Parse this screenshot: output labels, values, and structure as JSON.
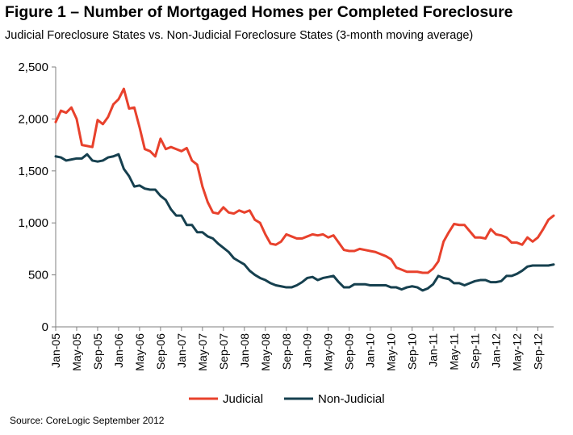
{
  "title": "Figure 1 – Number of Mortgaged Homes per Completed Foreclosure",
  "subtitle": "Judicial Foreclosure States vs. Non-Judicial Foreclosure States (3-month moving average)",
  "source": "Source: CoreLogic September 2012",
  "colors": {
    "judicial": "#e8412c",
    "non_judicial": "#16404f",
    "axis": "#7f7f7f"
  },
  "chart_data": {
    "type": "line",
    "title": "Figure 1 – Number of Mortgaged Homes per Completed Foreclosure",
    "subtitle": "Judicial Foreclosure States vs. Non-Judicial Foreclosure States (3-month moving average)",
    "xlabel": "",
    "ylabel": "",
    "ylim": [
      0,
      2500
    ],
    "yticks": [
      0,
      500,
      1000,
      1500,
      2000,
      2500
    ],
    "ytick_labels": [
      "0",
      "500",
      "1,000",
      "1,500",
      "2,000",
      "2,500"
    ],
    "xtick_labels": [
      "Jan-05",
      "May-05",
      "Sep-05",
      "Jan-06",
      "May-06",
      "Sep-06",
      "Jan-07",
      "May-07",
      "Sep-07",
      "Jan-08",
      "May-08",
      "Sep-08",
      "Jan-09",
      "May-09",
      "Sep-09",
      "Jan-10",
      "May-10",
      "Sep-10",
      "Jan-11",
      "May-11",
      "Sep-11",
      "Jan-12",
      "May-12",
      "Sep-12"
    ],
    "grid": false,
    "legend_position": "bottom",
    "x_range": [
      "Jan-05",
      "Sep-12"
    ],
    "series": [
      {
        "name": "Judicial",
        "values": [
          1970,
          2080,
          2060,
          2110,
          2000,
          1750,
          1740,
          1730,
          1990,
          1950,
          2020,
          2140,
          2190,
          2290,
          2100,
          2110,
          1920,
          1710,
          1690,
          1640,
          1810,
          1710,
          1730,
          1710,
          1690,
          1720,
          1600,
          1560,
          1350,
          1200,
          1100,
          1090,
          1150,
          1100,
          1090,
          1120,
          1100,
          1120,
          1030,
          1000,
          890,
          800,
          790,
          820,
          890,
          870,
          850,
          850,
          870,
          890,
          880,
          890,
          860,
          880,
          810,
          740,
          730,
          730,
          750,
          740,
          730,
          720,
          700,
          680,
          650,
          570,
          550,
          530,
          530,
          530,
          520,
          520,
          560,
          630,
          820,
          910,
          990,
          980,
          980,
          920,
          860,
          860,
          850,
          940,
          890,
          880,
          860,
          810,
          810,
          790,
          860,
          820,
          860,
          940,
          1030,
          1070
        ]
      },
      {
        "name": "Non-Judicial",
        "values": [
          1640,
          1630,
          1600,
          1610,
          1620,
          1620,
          1660,
          1600,
          1590,
          1600,
          1630,
          1640,
          1660,
          1520,
          1450,
          1350,
          1360,
          1330,
          1320,
          1320,
          1260,
          1220,
          1130,
          1070,
          1070,
          980,
          980,
          910,
          910,
          870,
          850,
          800,
          760,
          720,
          660,
          630,
          600,
          540,
          500,
          470,
          450,
          420,
          400,
          390,
          380,
          380,
          400,
          430,
          470,
          480,
          450,
          470,
          480,
          490,
          430,
          380,
          380,
          410,
          410,
          410,
          400,
          400,
          400,
          400,
          380,
          380,
          360,
          380,
          390,
          380,
          350,
          370,
          410,
          490,
          470,
          460,
          420,
          420,
          400,
          420,
          440,
          450,
          450,
          430,
          430,
          440,
          490,
          490,
          510,
          540,
          580,
          590,
          590,
          590,
          590,
          600
        ]
      }
    ]
  }
}
